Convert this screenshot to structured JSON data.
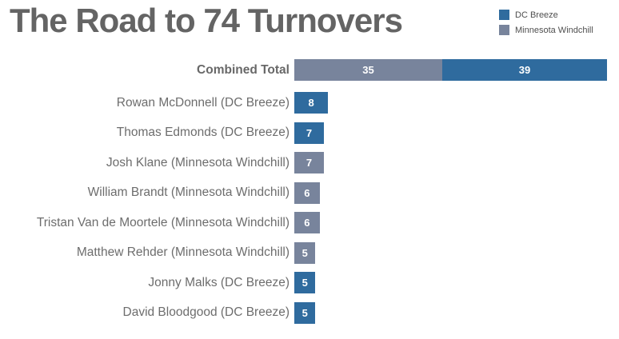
{
  "title": "The Road to 74 Turnovers",
  "legend": [
    {
      "label": "DC Breeze",
      "color": "#2f6b9e"
    },
    {
      "label": "Minnesota Windchill",
      "color": "#78849c"
    }
  ],
  "colors": {
    "DC Breeze": "#2f6b9e",
    "Minnesota Windchill": "#78849c"
  },
  "chart_data": {
    "type": "bar",
    "orientation": "horizontal",
    "title": "The Road to 74 Turnovers",
    "value_axis_max": 74,
    "grid": false,
    "legend_position": "top-right",
    "series_names": [
      "DC Breeze",
      "Minnesota Windchill"
    ],
    "rows": [
      {
        "label": "Combined Total",
        "combined": true,
        "segments": [
          {
            "value": 35,
            "team": "Minnesota Windchill"
          },
          {
            "value": 39,
            "team": "DC Breeze"
          }
        ]
      },
      {
        "label": "Rowan McDonnell (DC Breeze)",
        "combined": false,
        "segments": [
          {
            "value": 8,
            "team": "DC Breeze"
          }
        ]
      },
      {
        "label": "Thomas Edmonds (DC Breeze)",
        "combined": false,
        "segments": [
          {
            "value": 7,
            "team": "DC Breeze"
          }
        ]
      },
      {
        "label": "Josh Klane (Minnesota Windchill)",
        "combined": false,
        "segments": [
          {
            "value": 7,
            "team": "Minnesota Windchill"
          }
        ]
      },
      {
        "label": "William Brandt (Minnesota Windchill)",
        "combined": false,
        "segments": [
          {
            "value": 6,
            "team": "Minnesota Windchill"
          }
        ]
      },
      {
        "label": "Tristan Van de Moortele (Minnesota Windchill)",
        "combined": false,
        "segments": [
          {
            "value": 6,
            "team": "Minnesota Windchill"
          }
        ]
      },
      {
        "label": "Matthew Rehder (Minnesota Windchill)",
        "combined": false,
        "segments": [
          {
            "value": 5,
            "team": "Minnesota Windchill"
          }
        ]
      },
      {
        "label": "Jonny Malks (DC Breeze)",
        "combined": false,
        "segments": [
          {
            "value": 5,
            "team": "DC Breeze"
          }
        ]
      },
      {
        "label": "David Bloodgood (DC Breeze)",
        "combined": false,
        "segments": [
          {
            "value": 5,
            "team": "DC Breeze"
          }
        ]
      }
    ]
  }
}
